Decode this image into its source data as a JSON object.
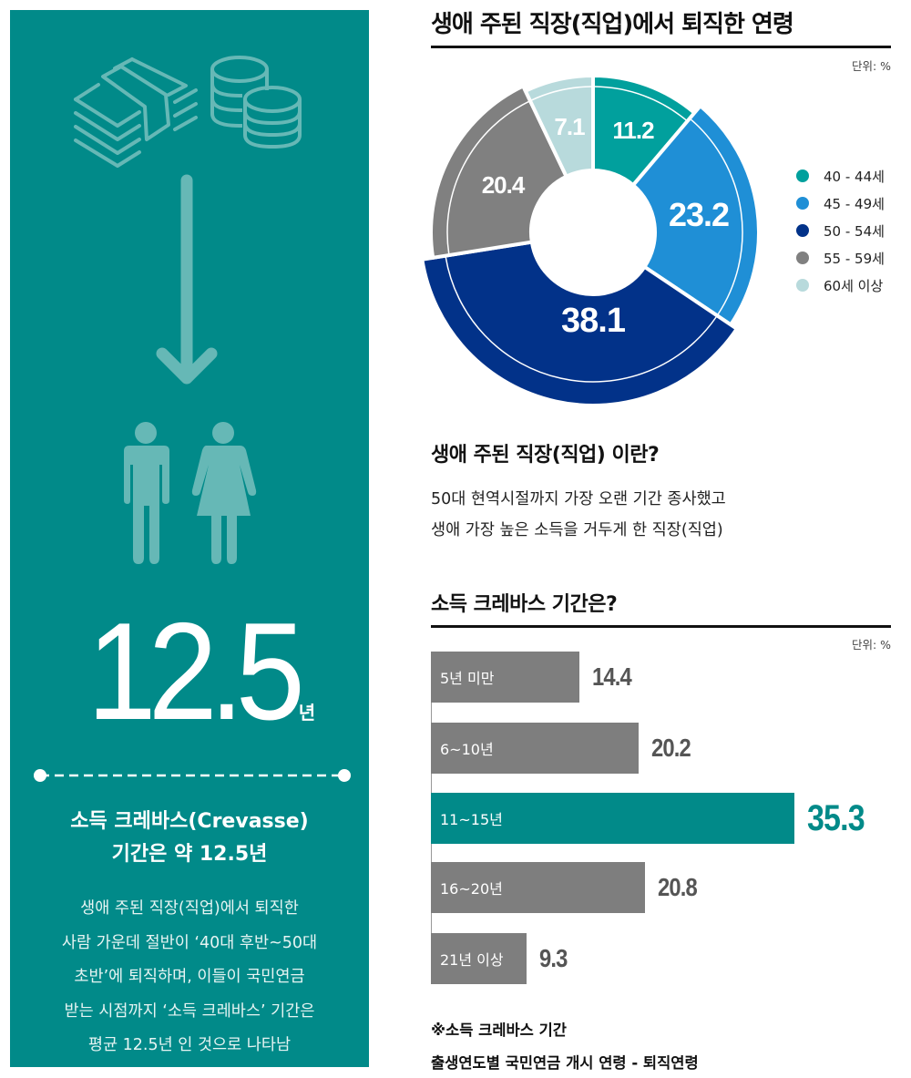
{
  "left_panel": {
    "bg_color": "#018a89",
    "icons": [
      "money-stack-icon",
      "coins-icon",
      "arrow-down-icon",
      "man-icon",
      "woman-icon"
    ],
    "big_number": "12.5",
    "big_number_unit": "년",
    "title_line1": "소득 크레바스(Crevasse)",
    "title_line2": "기간은 약 12.5년",
    "body_lines": [
      "생애 주된 직장(직업)에서 퇴직한",
      "사람 가운데 절반이 ‘40대 후반~50대",
      "초반’에 퇴직하며, 이들이 국민연금",
      "받는 시점까지 ‘소득 크레바스’ 기간은",
      "평균 12.5년 인 것으로 나타남"
    ]
  },
  "donut_section": {
    "title": "생애 주된 직장(직업)에서 퇴직한 연령",
    "unit": "단위: %"
  },
  "definition_section": {
    "title": "생애 주된 직장(직업) 이란?",
    "lines": [
      "50대 현역시절까지 가장 오랜 기간 종사했고",
      "생애 가장 높은 소득을 거두게 한 직장(직업)"
    ]
  },
  "bar_section": {
    "title": "소득 크레바스 기간은?",
    "unit": "단위: %"
  },
  "note": {
    "line1": "※소득 크레바스 기간",
    "line2": "출생연도별 국민연금 개시 연령 - 퇴직연령"
  },
  "chart_data": [
    {
      "type": "pie",
      "title": "생애 주된 직장(직업)에서 퇴직한 연령",
      "unit": "%",
      "donut": true,
      "categories": [
        "40 - 44세",
        "45 - 49세",
        "50 - 54세",
        "55 - 59세",
        "60세 이상"
      ],
      "values": [
        11.2,
        23.2,
        38.1,
        20.4,
        7.1
      ],
      "colors": [
        "#01a09d",
        "#1f8fd6",
        "#023289",
        "#808080",
        "#b8dadc"
      ],
      "labels": [
        "11.2",
        "23.2",
        "38.1",
        "20.4",
        "7.1"
      ],
      "legend_position": "right"
    },
    {
      "type": "bar",
      "orientation": "horizontal",
      "title": "소득 크레바스 기간은?",
      "unit": "%",
      "categories": [
        "5년 미만",
        "6~10년",
        "11~15년",
        "16~20년",
        "21년 이상"
      ],
      "values": [
        14.4,
        20.2,
        35.3,
        20.8,
        9.3
      ],
      "labels": [
        "14.4",
        "20.2",
        "35.3",
        "20.8",
        "9.3"
      ],
      "colors": [
        "#7e7e7e",
        "#7e7e7e",
        "#018a89",
        "#7e7e7e",
        "#7e7e7e"
      ],
      "highlight_index": 2,
      "grid": false
    }
  ]
}
